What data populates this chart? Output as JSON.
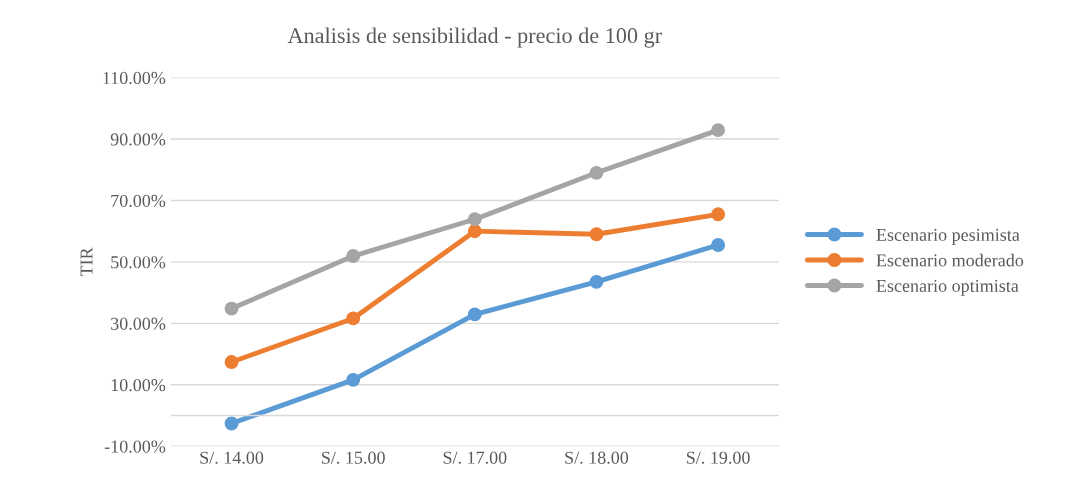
{
  "chart_data": {
    "type": "line",
    "title": "Analisis de sensibilidad - precio de 100 gr",
    "ylabel": "TIR",
    "categories": [
      "S/. 14.00",
      "S/. 15.00",
      "S/. 17.00",
      "S/. 18.00",
      "S/. 19.00"
    ],
    "series": [
      {
        "name": "Escenario pesimista",
        "color": "#5b9bd5",
        "values": [
          -2.6,
          11.6,
          32.9,
          43.5,
          55.5
        ]
      },
      {
        "name": "Escenario moderado",
        "color": "#ed7d31",
        "values": [
          17.4,
          31.6,
          60.0,
          59.0,
          65.5
        ]
      },
      {
        "name": "Escenario optimista",
        "color": "#a5a5a5",
        "values": [
          34.8,
          51.9,
          63.9,
          79.0,
          92.9
        ]
      }
    ],
    "ylim": [
      -10,
      110
    ],
    "yticks": [
      {
        "value": -10,
        "label": "-10.00%"
      },
      {
        "value": 10,
        "label": "10.00%"
      },
      {
        "value": 30,
        "label": "30.00%"
      },
      {
        "value": 50,
        "label": "50.00%"
      },
      {
        "value": 70,
        "label": "70.00%"
      },
      {
        "value": 90,
        "label": "90.00%"
      },
      {
        "value": 110,
        "label": "110.00%"
      }
    ],
    "grid": "y",
    "legend": "right",
    "marker": "circle",
    "line_style": "solid"
  }
}
